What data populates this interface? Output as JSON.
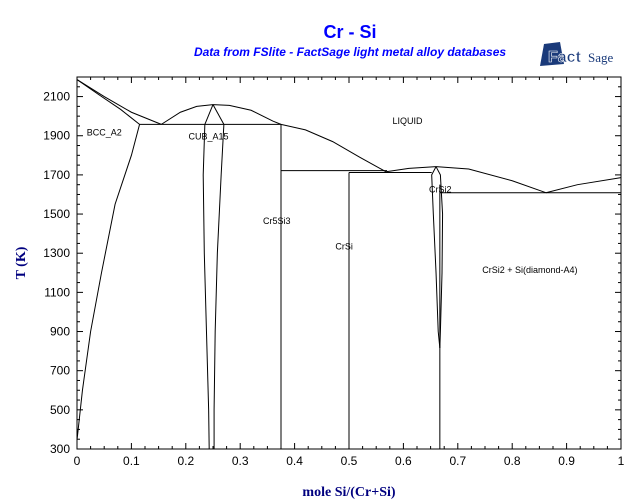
{
  "header": {
    "title": "Cr - Si",
    "subtitle": "Data from FSlite - FactSage light metal alloy databases",
    "logo_text": "FactSage"
  },
  "colors": {
    "title": "#0000ff",
    "axis_title": "#00007f",
    "lines": "#000000",
    "logo": "#1a3a7a"
  },
  "chart_data": {
    "type": "line",
    "title": "Cr - Si",
    "xlabel": "mole Si/(Cr+Si)",
    "ylabel": "T (K)",
    "xlim": [
      0,
      1
    ],
    "ylim": [
      300,
      2200
    ],
    "xticks": [
      "0",
      "0.1",
      "0.2",
      "0.3",
      "0.4",
      "0.5",
      "0.6",
      "0.7",
      "0.8",
      "0.9",
      "1"
    ],
    "yticks": [
      "300",
      "500",
      "700",
      "900",
      "1100",
      "1300",
      "1500",
      "1700",
      "1900",
      "2100"
    ],
    "grid": false,
    "legend": "none",
    "lines": [
      [
        [
          0,
          2187
        ],
        [
          0.05,
          2100
        ],
        [
          0.1,
          2020
        ],
        [
          0.155,
          1958
        ]
      ],
      [
        [
          0,
          2187
        ],
        [
          0.04,
          2110
        ],
        [
          0.08,
          2035
        ],
        [
          0.115,
          1958
        ]
      ],
      [
        [
          0.115,
          1958
        ],
        [
          0.27,
          1958
        ]
      ],
      [
        [
          0.155,
          1958
        ],
        [
          0.19,
          2020
        ],
        [
          0.22,
          2050
        ],
        [
          0.25,
          2059
        ],
        [
          0.28,
          2055
        ],
        [
          0.32,
          2030
        ],
        [
          0.36,
          1975
        ],
        [
          0.375,
          1958
        ]
      ],
      [
        [
          0.25,
          2059
        ],
        [
          0.235,
          1958
        ]
      ],
      [
        [
          0.25,
          2059
        ],
        [
          0.27,
          1958
        ]
      ],
      [
        [
          0.27,
          1958
        ],
        [
          0.375,
          1958
        ]
      ],
      [
        [
          0.115,
          1958
        ],
        [
          0.1,
          1800
        ],
        [
          0.07,
          1550
        ],
        [
          0.045,
          1200
        ],
        [
          0.025,
          900
        ],
        [
          0.01,
          600
        ],
        [
          0,
          345
        ]
      ],
      [
        [
          0.235,
          1958
        ],
        [
          0.232,
          1700
        ],
        [
          0.234,
          1300
        ],
        [
          0.238,
          900
        ],
        [
          0.242,
          500
        ],
        [
          0.243,
          300
        ]
      ],
      [
        [
          0.27,
          1958
        ],
        [
          0.265,
          1700
        ],
        [
          0.258,
          1300
        ],
        [
          0.254,
          900
        ],
        [
          0.252,
          500
        ],
        [
          0.252,
          300
        ]
      ],
      [
        [
          0.375,
          1958
        ],
        [
          0.375,
          300
        ]
      ],
      [
        [
          0.375,
          1958
        ],
        [
          0.42,
          1930
        ],
        [
          0.47,
          1870
        ],
        [
          0.52,
          1790
        ],
        [
          0.568,
          1716
        ]
      ],
      [
        [
          0.375,
          1722
        ],
        [
          0.57,
          1722
        ]
      ],
      [
        [
          0.5,
          1712
        ],
        [
          0.5,
          300
        ]
      ],
      [
        [
          0.5,
          1712
        ],
        [
          0.652,
          1712
        ]
      ],
      [
        [
          0.568,
          1716
        ],
        [
          0.61,
          1733
        ],
        [
          0.66,
          1742
        ],
        [
          0.72,
          1730
        ],
        [
          0.8,
          1670
        ],
        [
          0.862,
          1609
        ]
      ],
      [
        [
          0.862,
          1609
        ],
        [
          0.92,
          1650
        ],
        [
          1,
          1686
        ]
      ],
      [
        [
          0.667,
          1609
        ],
        [
          1,
          1609
        ]
      ],
      [
        [
          0.66,
          1742
        ],
        [
          0.652,
          1700
        ],
        [
          0.655,
          1500
        ],
        [
          0.66,
          1200
        ],
        [
          0.664,
          900
        ],
        [
          0.667,
          816
        ]
      ],
      [
        [
          0.66,
          1742
        ],
        [
          0.668,
          1700
        ],
        [
          0.672,
          1500
        ],
        [
          0.671,
          1200
        ],
        [
          0.668,
          900
        ],
        [
          0.667,
          816
        ]
      ],
      [
        [
          0.667,
          1650
        ],
        [
          0.667,
          300
        ]
      ]
    ],
    "region_labels": [
      {
        "text": "LIQUID",
        "x": 0.58,
        "T": 1960
      },
      {
        "text": "BCC_A2",
        "x": 0.018,
        "T": 1900
      },
      {
        "text": "CUB_A15",
        "x": 0.205,
        "T": 1880
      },
      {
        "text": "Cr5Si3",
        "x": 0.342,
        "T": 1450
      },
      {
        "text": "CrSi",
        "x": 0.475,
        "T": 1320
      },
      {
        "text": "CrSi2",
        "x": 0.647,
        "T": 1610
      },
      {
        "text": "CrSi2 + Si(diamond-A4)",
        "x": 0.745,
        "T": 1200
      }
    ]
  }
}
